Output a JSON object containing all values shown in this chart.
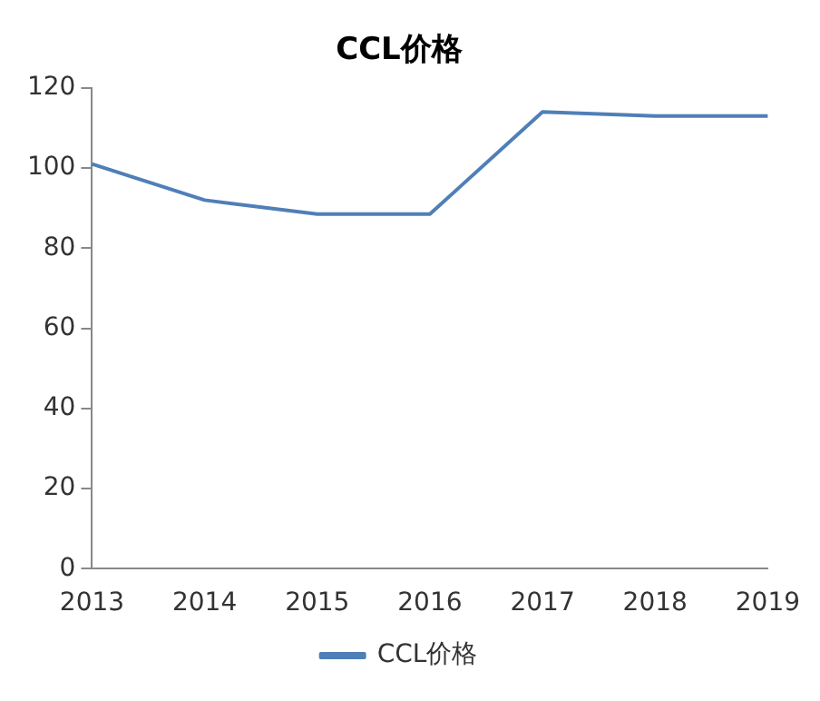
{
  "chart_data": {
    "type": "line",
    "title": "CCL价格",
    "categories": [
      "2013",
      "2014",
      "2015",
      "2016",
      "2017",
      "2018",
      "2019"
    ],
    "series": [
      {
        "name": "CCL价格",
        "color": "#4f7fb7",
        "values": [
          101,
          92,
          88.5,
          88.5,
          114,
          113,
          113
        ]
      }
    ],
    "ylim": [
      0,
      120
    ],
    "yticks": [
      0,
      20,
      40,
      60,
      80,
      100,
      120
    ],
    "grid": false,
    "legend": "bottom",
    "marker": "none",
    "line_style": "solid"
  }
}
